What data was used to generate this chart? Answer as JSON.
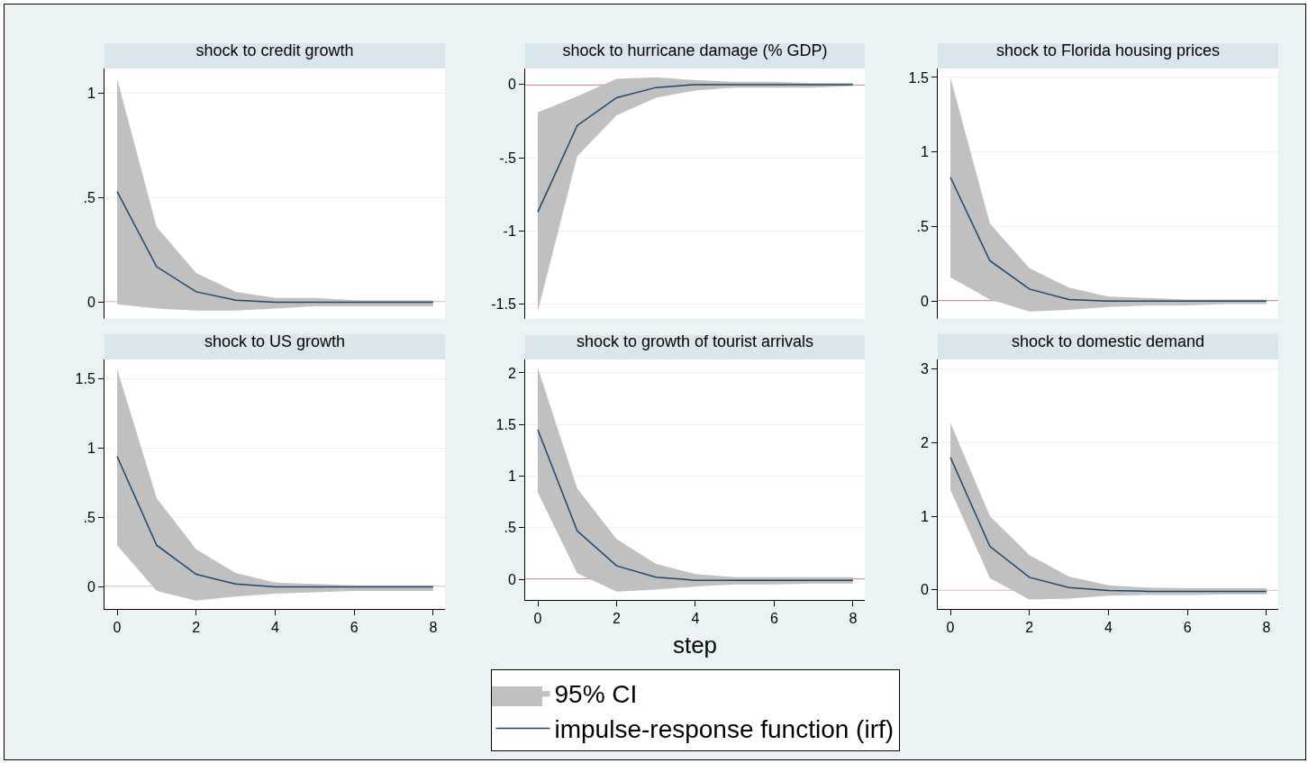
{
  "chart_data": [
    {
      "type": "line",
      "title": "shock to credit growth",
      "x": [
        0,
        1,
        2,
        3,
        4,
        5,
        6,
        7,
        8
      ],
      "xlim": [
        -0.32,
        8.3
      ],
      "xticks": [
        0,
        2,
        4,
        6,
        8
      ],
      "ylim": [
        -0.08,
        1.12
      ],
      "yticks": [
        0,
        {
          "value": 0.5,
          "label": ".5"
        },
        1
      ],
      "tick_labels": "y",
      "grid": "y",
      "ref_lines": [
        {
          "axis": "y",
          "value": 0,
          "color": "#c8102e"
        }
      ],
      "series": [
        {
          "color": "#1a476f",
          "values": [
            0.53,
            0.17,
            0.05,
            0.01,
            0,
            0,
            0,
            0,
            0
          ],
          "lower": [
            -0.01,
            -0.03,
            -0.04,
            -0.04,
            -0.03,
            -0.02,
            -0.02,
            -0.02,
            -0.02
          ],
          "upper": [
            1.07,
            0.36,
            0.14,
            0.05,
            0.02,
            0.02,
            0.01,
            0.01,
            0.01
          ]
        }
      ]
    },
    {
      "type": "line",
      "title": "shock to hurricane damage (% GDP)",
      "x": [
        0,
        1,
        2,
        3,
        4,
        5,
        6,
        7,
        8
      ],
      "xlim": [
        -0.32,
        8.3
      ],
      "xticks": [
        0,
        2,
        4,
        6,
        8
      ],
      "ylim": [
        -1.6,
        0.11
      ],
      "yticks": [
        {
          "value": -1.5,
          "label": "-1.5"
        },
        {
          "value": -1,
          "label": "-1"
        },
        {
          "value": -0.5,
          "label": "-.5"
        },
        0
      ],
      "tick_labels": "y",
      "grid": "y",
      "ref_lines": [
        {
          "axis": "y",
          "value": 0,
          "color": "#c8102e"
        }
      ],
      "series": [
        {
          "color": "#1a476f",
          "values": [
            -0.87,
            -0.28,
            -0.09,
            -0.02,
            0,
            0,
            0,
            0,
            0
          ],
          "lower": [
            -1.55,
            -0.49,
            -0.21,
            -0.09,
            -0.04,
            -0.02,
            -0.02,
            -0.02,
            -0.01
          ],
          "upper": [
            -0.19,
            -0.08,
            0.04,
            0.05,
            0.03,
            0.02,
            0.02,
            0.01,
            0.01
          ]
        }
      ]
    },
    {
      "type": "line",
      "title": "shock to Florida housing prices",
      "x": [
        0,
        1,
        2,
        3,
        4,
        5,
        6,
        7,
        8
      ],
      "xlim": [
        -0.32,
        8.3
      ],
      "xticks": [
        0,
        2,
        4,
        6,
        8
      ],
      "ylim": [
        -0.12,
        1.56
      ],
      "yticks": [
        0,
        {
          "value": 0.5,
          "label": ".5"
        },
        1,
        1.5
      ],
      "tick_labels": "y",
      "grid": "y",
      "ref_lines": [
        {
          "axis": "y",
          "value": 0,
          "color": "#c8102e"
        }
      ],
      "series": [
        {
          "color": "#1a476f",
          "values": [
            0.83,
            0.27,
            0.08,
            0.01,
            0,
            0,
            0,
            0,
            0
          ],
          "lower": [
            0.16,
            0.01,
            -0.07,
            -0.06,
            -0.04,
            -0.03,
            -0.03,
            -0.02,
            -0.02
          ],
          "upper": [
            1.5,
            0.52,
            0.22,
            0.09,
            0.03,
            0.02,
            0.01,
            0.01,
            0.01
          ]
        }
      ]
    },
    {
      "type": "line",
      "title": "shock to US growth",
      "x": [
        0,
        1,
        2,
        3,
        4,
        5,
        6,
        7,
        8
      ],
      "xlim": [
        -0.32,
        8.3
      ],
      "xticks": [
        0,
        2,
        4,
        6,
        8
      ],
      "ylim": [
        -0.16,
        1.64
      ],
      "yticks": [
        0,
        {
          "value": 0.5,
          "label": ".5"
        },
        1,
        1.5
      ],
      "grid": "y",
      "ref_lines": [
        {
          "axis": "y",
          "value": 0,
          "color": "#c8102e"
        }
      ],
      "series": [
        {
          "color": "#1a476f",
          "values": [
            0.94,
            0.3,
            0.09,
            0.02,
            0,
            0,
            0,
            0,
            0
          ],
          "lower": [
            0.3,
            -0.03,
            -0.1,
            -0.07,
            -0.05,
            -0.04,
            -0.03,
            -0.03,
            -0.03
          ],
          "upper": [
            1.57,
            0.64,
            0.27,
            0.1,
            0.03,
            0.02,
            0.01,
            0.01,
            0.01
          ]
        }
      ]
    },
    {
      "type": "line",
      "title": "shock to growth of tourist arrivals",
      "xlabel": "step",
      "x": [
        0,
        1,
        2,
        3,
        4,
        5,
        6,
        7,
        8
      ],
      "xlim": [
        -0.32,
        8.3
      ],
      "xticks": [
        0,
        2,
        4,
        6,
        8
      ],
      "ylim": [
        -0.2,
        2.13
      ],
      "yticks": [
        0,
        {
          "value": 0.5,
          "label": ".5"
        },
        1,
        1.5,
        2
      ],
      "grid": "y",
      "legend": "bottom",
      "annotations": [
        "95% CI"
      ],
      "ref_lines": [
        {
          "axis": "y",
          "value": 0,
          "color": "#c8102e"
        }
      ],
      "series": [
        {
          "name": "impulse-response function (irf)",
          "color": "#1a476f",
          "values": [
            1.45,
            0.47,
            0.13,
            0.02,
            -0.01,
            -0.01,
            -0.01,
            -0.01,
            -0.01
          ],
          "lower": [
            0.84,
            0.06,
            -0.12,
            -0.1,
            -0.07,
            -0.05,
            -0.05,
            -0.04,
            -0.04
          ],
          "upper": [
            2.05,
            0.88,
            0.39,
            0.15,
            0.05,
            0.02,
            0.02,
            0.02,
            0.02
          ]
        }
      ]
    },
    {
      "type": "line",
      "title": "shock to domestic demand",
      "x": [
        0,
        1,
        2,
        3,
        4,
        5,
        6,
        7,
        8
      ],
      "xlim": [
        -0.32,
        8.3
      ],
      "xticks": [
        0,
        2,
        4,
        6,
        8
      ],
      "ylim": [
        -0.26,
        3.13
      ],
      "yticks": [
        0,
        1,
        2,
        3
      ],
      "grid": "y",
      "ref_lines": [
        {
          "axis": "y",
          "value": 0,
          "color": "#c8102e"
        }
      ],
      "series": [
        {
          "color": "#1a476f",
          "values": [
            1.8,
            0.59,
            0.17,
            0.03,
            -0.01,
            -0.02,
            -0.02,
            -0.02,
            -0.02
          ],
          "lower": [
            1.36,
            0.16,
            -0.13,
            -0.12,
            -0.08,
            -0.07,
            -0.07,
            -0.06,
            -0.06
          ],
          "upper": [
            2.27,
            1.0,
            0.47,
            0.18,
            0.06,
            0.03,
            0.02,
            0.02,
            0.02
          ]
        }
      ]
    }
  ]
}
